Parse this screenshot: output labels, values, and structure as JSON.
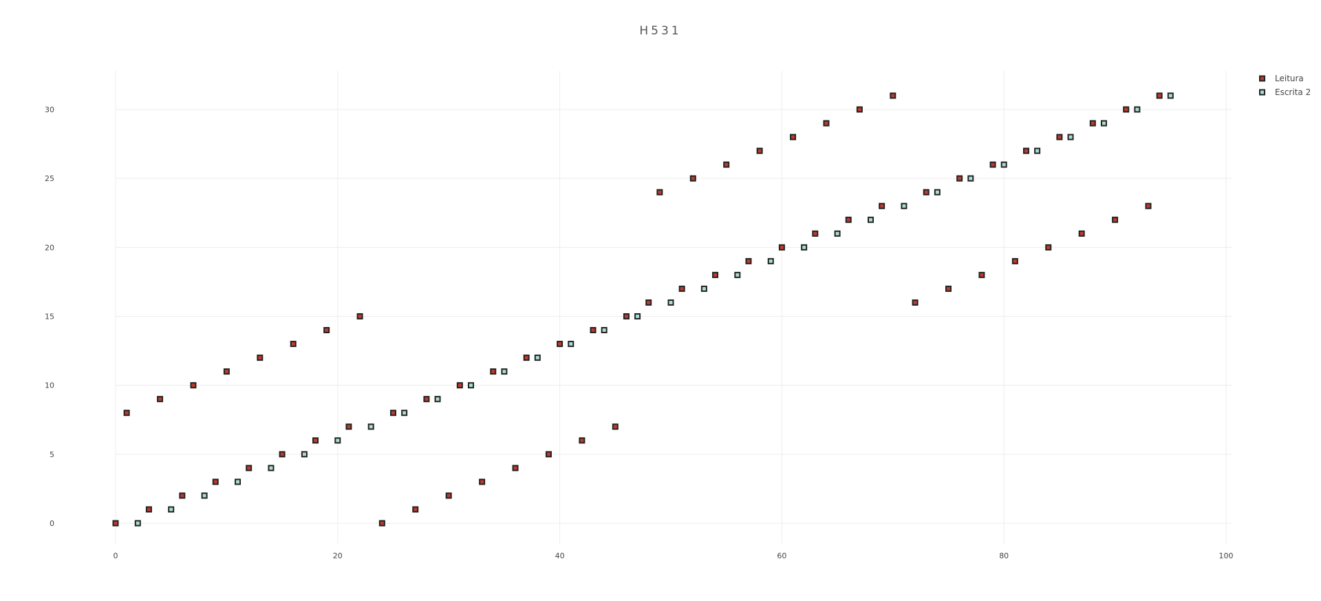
{
  "chart_data": {
    "type": "scatter",
    "title": "H531",
    "xlabel": "",
    "ylabel": "",
    "xlim": [
      -5,
      100
    ],
    "ylim": [
      -2,
      33
    ],
    "xticks": [
      0,
      20,
      40,
      60,
      80,
      100
    ],
    "yticks": [
      0,
      5,
      10,
      15,
      20,
      25,
      30
    ],
    "grid": true,
    "legend_position": "top-right",
    "series": [
      {
        "name": "Leitura",
        "color": "#c0392b",
        "marker": "square",
        "points": [
          [
            0,
            0
          ],
          [
            1,
            8
          ],
          [
            3,
            1
          ],
          [
            4,
            9
          ],
          [
            6,
            2
          ],
          [
            7,
            10
          ],
          [
            9,
            3
          ],
          [
            10,
            11
          ],
          [
            12,
            4
          ],
          [
            13,
            12
          ],
          [
            15,
            5
          ],
          [
            16,
            13
          ],
          [
            18,
            6
          ],
          [
            19,
            14
          ],
          [
            21,
            7
          ],
          [
            22,
            15
          ],
          [
            24,
            0
          ],
          [
            25,
            8
          ],
          [
            27,
            1
          ],
          [
            28,
            9
          ],
          [
            30,
            2
          ],
          [
            31,
            10
          ],
          [
            33,
            3
          ],
          [
            34,
            11
          ],
          [
            36,
            4
          ],
          [
            37,
            12
          ],
          [
            39,
            5
          ],
          [
            40,
            13
          ],
          [
            42,
            6
          ],
          [
            43,
            14
          ],
          [
            45,
            7
          ],
          [
            46,
            15
          ],
          [
            48,
            16
          ],
          [
            49,
            24
          ],
          [
            51,
            17
          ],
          [
            52,
            25
          ],
          [
            54,
            18
          ],
          [
            55,
            26
          ],
          [
            57,
            19
          ],
          [
            58,
            27
          ],
          [
            60,
            20
          ],
          [
            61,
            28
          ],
          [
            63,
            21
          ],
          [
            64,
            29
          ],
          [
            66,
            22
          ],
          [
            67,
            30
          ],
          [
            69,
            23
          ],
          [
            70,
            31
          ],
          [
            72,
            16
          ],
          [
            73,
            24
          ],
          [
            75,
            17
          ],
          [
            76,
            25
          ],
          [
            78,
            18
          ],
          [
            79,
            26
          ],
          [
            81,
            19
          ],
          [
            82,
            27
          ],
          [
            84,
            20
          ],
          [
            85,
            28
          ],
          [
            87,
            21
          ],
          [
            88,
            29
          ],
          [
            90,
            22
          ],
          [
            91,
            30
          ],
          [
            93,
            23
          ],
          [
            94,
            31
          ]
        ]
      },
      {
        "name": "Escrita 2",
        "color": "#a8ddd2",
        "marker": "square",
        "points": [
          [
            2,
            0
          ],
          [
            5,
            1
          ],
          [
            8,
            2
          ],
          [
            11,
            3
          ],
          [
            14,
            4
          ],
          [
            17,
            5
          ],
          [
            20,
            6
          ],
          [
            23,
            7
          ],
          [
            26,
            8
          ],
          [
            29,
            9
          ],
          [
            32,
            10
          ],
          [
            35,
            11
          ],
          [
            38,
            12
          ],
          [
            41,
            13
          ],
          [
            44,
            14
          ],
          [
            47,
            15
          ],
          [
            50,
            16
          ],
          [
            53,
            17
          ],
          [
            56,
            18
          ],
          [
            59,
            19
          ],
          [
            62,
            20
          ],
          [
            65,
            21
          ],
          [
            68,
            22
          ],
          [
            71,
            23
          ],
          [
            74,
            24
          ],
          [
            77,
            25
          ],
          [
            80,
            26
          ],
          [
            83,
            27
          ],
          [
            86,
            28
          ],
          [
            89,
            29
          ],
          [
            92,
            30
          ],
          [
            95,
            31
          ]
        ]
      }
    ]
  }
}
